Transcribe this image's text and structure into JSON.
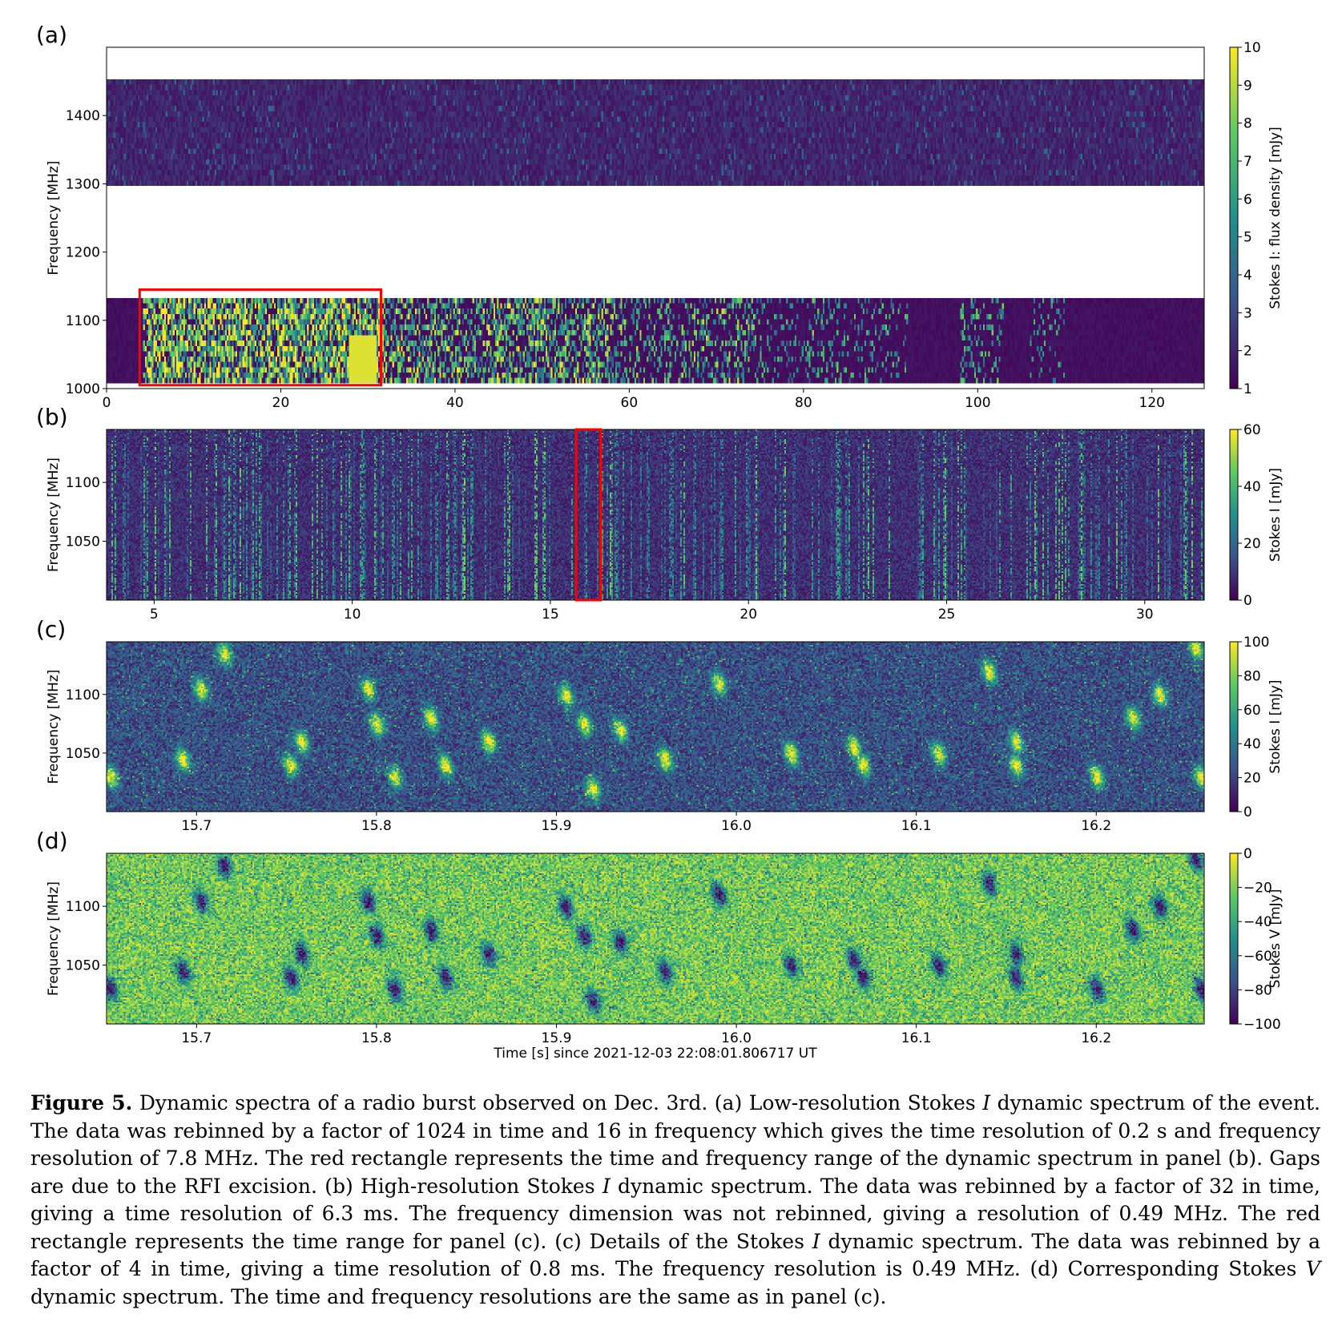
{
  "chart_data": [
    {
      "panel": "(a)",
      "type": "heatmap",
      "ylabel": "Frequency [MHz]",
      "xlim": [
        0,
        126
      ],
      "ylim": [
        1000,
        1500
      ],
      "xticks": [
        "0",
        "20",
        "40",
        "60",
        "80",
        "100",
        "120"
      ],
      "yticks": [
        "1000",
        "1100",
        "1200",
        "1300",
        "1400"
      ],
      "colorbar_label": "Stokes I: flux density [mJy]",
      "colorbar_ticks": [
        "1",
        "2",
        "3",
        "4",
        "5",
        "6",
        "7",
        "8",
        "9",
        "10"
      ],
      "colorbar_range": [
        1,
        10
      ],
      "data_bands_mhz": [
        [
          1010,
          1140
        ],
        [
          1298,
          1460
        ]
      ],
      "bright_emission_time_range_s": [
        4,
        110
      ],
      "highlight_box": {
        "x": [
          3.8,
          31.5
        ],
        "y": [
          1005,
          1145
        ],
        "color": "#ff0000"
      }
    },
    {
      "panel": "(b)",
      "type": "heatmap",
      "ylabel": "Frequency [MHz]",
      "xlim": [
        3.8,
        31.5
      ],
      "ylim": [
        1000,
        1145
      ],
      "xticks": [
        "5",
        "10",
        "15",
        "20",
        "25",
        "30"
      ],
      "yticks": [
        "1050",
        "1100"
      ],
      "colorbar_label": "Stokes I [mJy]",
      "colorbar_ticks": [
        "0",
        "20",
        "40",
        "60"
      ],
      "colorbar_range": [
        0,
        60
      ],
      "highlight_box": {
        "x": [
          15.65,
          16.27
        ],
        "y": [
          1000,
          1145
        ],
        "color": "#ff0000"
      }
    },
    {
      "panel": "(c)",
      "type": "heatmap",
      "ylabel": "Frequency [MHz]",
      "xlim": [
        15.65,
        16.26
      ],
      "ylim": [
        1000,
        1145
      ],
      "xticks": [
        "15.7",
        "15.8",
        "15.9",
        "16.0",
        "16.1",
        "16.2"
      ],
      "yticks": [
        "1050",
        "1100"
      ],
      "colorbar_label": "Stokes I [mJy]",
      "colorbar_ticks": [
        "0",
        "20",
        "40",
        "60",
        "80",
        "100"
      ],
      "colorbar_range": [
        0,
        100
      ],
      "burst_centers": [
        [
          15.652,
          1030
        ],
        [
          15.692,
          1045
        ],
        [
          15.702,
          1105
        ],
        [
          15.715,
          1135
        ],
        [
          15.758,
          1060
        ],
        [
          15.752,
          1040
        ],
        [
          15.795,
          1105
        ],
        [
          15.8,
          1075
        ],
        [
          15.81,
          1030
        ],
        [
          15.83,
          1080
        ],
        [
          15.838,
          1040
        ],
        [
          15.862,
          1060
        ],
        [
          15.905,
          1100
        ],
        [
          15.915,
          1075
        ],
        [
          15.92,
          1020
        ],
        [
          15.935,
          1070
        ],
        [
          15.96,
          1045
        ],
        [
          15.99,
          1110
        ],
        [
          16.03,
          1050
        ],
        [
          16.065,
          1055
        ],
        [
          16.07,
          1040
        ],
        [
          16.112,
          1050
        ],
        [
          16.14,
          1120
        ],
        [
          16.155,
          1060
        ],
        [
          16.155,
          1040
        ],
        [
          16.2,
          1030
        ],
        [
          16.22,
          1080
        ],
        [
          16.235,
          1100
        ],
        [
          16.255,
          1140
        ],
        [
          16.258,
          1030
        ]
      ]
    },
    {
      "panel": "(d)",
      "type": "heatmap",
      "ylabel": "Frequency [MHz]",
      "xlabel": "Time [s] since 2021-12-03 22:08:01.806717 UT",
      "xlim": [
        15.65,
        16.26
      ],
      "ylim": [
        1000,
        1145
      ],
      "xticks": [
        "15.7",
        "15.8",
        "15.9",
        "16.0",
        "16.1",
        "16.2"
      ],
      "yticks": [
        "1050",
        "1100"
      ],
      "colorbar_label": "Stokes V [mJy]",
      "colorbar_ticks": [
        "0",
        "−20",
        "−40",
        "−60",
        "−80",
        "−100"
      ],
      "colorbar_range": [
        -100,
        0
      ],
      "note_mirrors_panel": "(c)"
    }
  ],
  "colormap": [
    "#440154",
    "#3b528b",
    "#21918c",
    "#5ec962",
    "#fde725"
  ],
  "panel_letters": [
    "(a)",
    "(b)",
    "(c)",
    "(d)"
  ],
  "caption": {
    "label": "Figure 5.",
    "text_1": " Dynamic spectra of a radio burst observed on Dec. 3rd. (a) Low-resolution Stokes ",
    "italic_1": "I",
    "text_2": " dynamic spectrum of the event. The data was rebinned by a factor of 1024 in time and 16 in frequency which gives the time resolution of 0.2 s and frequency resolution of 7.8 MHz. The red rectangle represents the time and frequency range of the dynamic spectrum in panel (b). Gaps are due to the RFI excision. (b) High-resolution Stokes ",
    "italic_2": "I",
    "text_3": " dynamic spectrum. The data was rebinned by a factor of 32 in time, giving a time resolution of 6.3 ms. The frequency dimension was not rebinned, giving a resolution of 0.49 MHz. The red rectangle represents the time range for panel (c). (c) Details of the Stokes ",
    "italic_3": "I",
    "text_4": " dynamic spectrum. The data was rebinned by a factor of 4 in time, giving a time resolution of 0.8 ms. The frequency resolution is 0.49 MHz. (d) Corresponding Stokes ",
    "italic_4": "V",
    "text_5": " dynamic spectrum. The time and frequency resolutions are the same as in panel (c)."
  }
}
